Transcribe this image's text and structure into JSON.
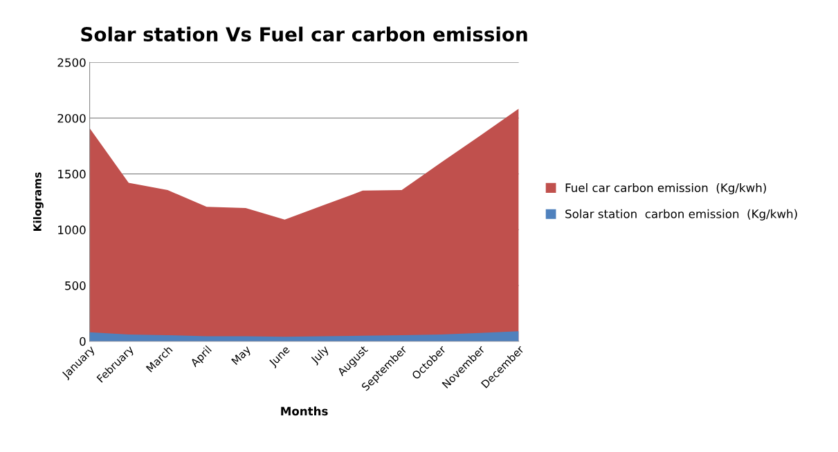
{
  "chart_data": {
    "type": "area",
    "title": "Solar station Vs Fuel car carbon emission",
    "xlabel": "Months",
    "ylabel": "Kilograms",
    "categories": [
      "January",
      "February",
      "March",
      "April",
      "May",
      "June",
      "July",
      "August",
      "September",
      "October",
      "November",
      "December"
    ],
    "series": [
      {
        "name": "Fuel car carbon emission  (Kg/kwh)",
        "color": "#c0504d",
        "values": [
          1910,
          1420,
          1355,
          1205,
          1195,
          1090,
          1220,
          1350,
          1355,
          1600,
          1840,
          2085
        ]
      },
      {
        "name": "Solar station  carbon emission  (Kg/kwh)",
        "color": "#4f81bd",
        "values": [
          80,
          60,
          55,
          45,
          45,
          40,
          45,
          50,
          55,
          60,
          75,
          90
        ]
      }
    ],
    "ylim": [
      0,
      2500
    ],
    "yticks": [
      0,
      500,
      1000,
      1500,
      2000,
      2500
    ],
    "grid": "y",
    "legend": "right"
  }
}
